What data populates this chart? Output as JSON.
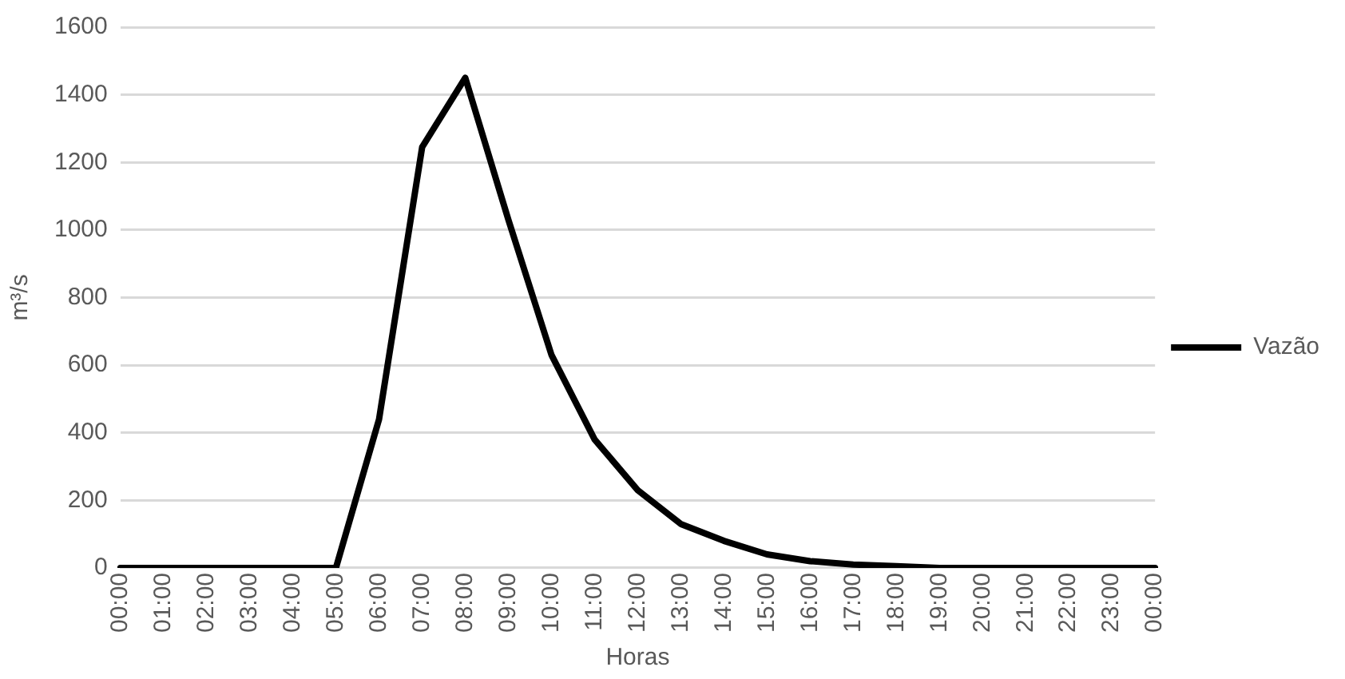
{
  "chart_data": {
    "type": "line",
    "xlabel": "Horas",
    "ylabel": "m³/s",
    "categories": [
      "00:00",
      "01:00",
      "02:00",
      "03:00",
      "04:00",
      "05:00",
      "06:00",
      "07:00",
      "08:00",
      "09:00",
      "10:00",
      "11:00",
      "12:00",
      "13:00",
      "14:00",
      "15:00",
      "16:00",
      "17:00",
      "18:00",
      "19:00",
      "20:00",
      "21:00",
      "22:00",
      "23:00",
      "00:00"
    ],
    "series": [
      {
        "name": "Vazão",
        "color": "#000000",
        "values": [
          0,
          0,
          0,
          0,
          0,
          0,
          440,
          1245,
          1450,
          1030,
          630,
          380,
          230,
          130,
          80,
          40,
          20,
          10,
          5,
          0,
          0,
          0,
          0,
          0,
          0
        ]
      }
    ],
    "ylim": [
      0,
      1600
    ],
    "yticks": [
      0,
      200,
      400,
      600,
      800,
      1000,
      1200,
      1400,
      1600
    ],
    "grid": "y",
    "legend": "right",
    "marker": "none",
    "line_style": "solid"
  }
}
